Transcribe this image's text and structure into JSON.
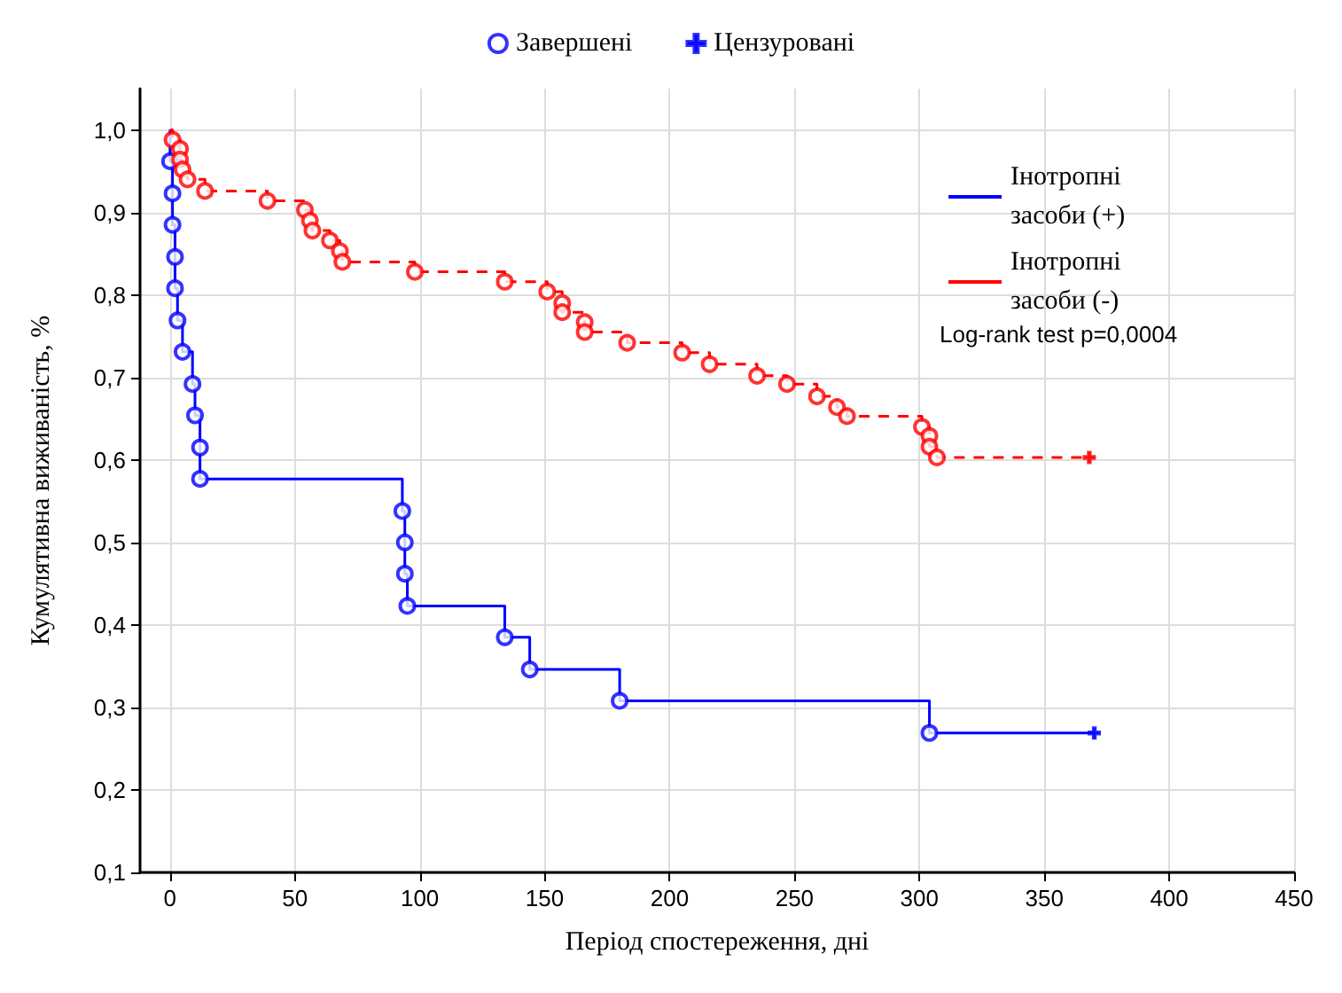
{
  "chart_data": {
    "type": "step",
    "xlabel": "Період спостереження, дні",
    "ylabel": "Кумулятивна виживаність, %",
    "xlim": [
      -12,
      450
    ],
    "xticks": [
      0,
      50,
      100,
      150,
      200,
      250,
      300,
      350,
      400,
      450
    ],
    "ylim": [
      0.1,
      1.05
    ],
    "yticks": [
      {
        "value": 0.1,
        "label": "0,1"
      },
      {
        "value": 0.2,
        "label": "0,2"
      },
      {
        "value": 0.3,
        "label": "0,3"
      },
      {
        "value": 0.4,
        "label": "0,4"
      },
      {
        "value": 0.5,
        "label": "0,5"
      },
      {
        "value": 0.6,
        "label": "0,6"
      },
      {
        "value": 0.7,
        "label": "0,7"
      },
      {
        "value": 0.8,
        "label": "0,8"
      },
      {
        "value": 0.9,
        "label": "0,9"
      },
      {
        "value": 1.0,
        "label": "1,0"
      }
    ],
    "grid": true,
    "legend": "top",
    "annotations": [
      "Log-rank test p=0,0004"
    ],
    "series": [
      {
        "name": "Інотропні засоби (+)",
        "type": "step",
        "color": "#0000ff",
        "line_style": "solid",
        "x": [
          0,
          0,
          1,
          1,
          2,
          2,
          3,
          5,
          9,
          10,
          12,
          12,
          93,
          94,
          94,
          95,
          134,
          144,
          180,
          304,
          370
        ],
        "values": [
          1.0,
          0.962,
          0.923,
          0.885,
          0.846,
          0.808,
          0.769,
          0.731,
          0.692,
          0.654,
          0.615,
          0.577,
          0.538,
          0.5,
          0.462,
          0.423,
          0.385,
          0.346,
          0.308,
          0.269,
          0.269
        ]
      },
      {
        "name": "Інотропні засоби (-)",
        "type": "step",
        "color": "#ff0000",
        "line_style": "dashed",
        "x": [
          0,
          1,
          4,
          4,
          5,
          7,
          14,
          39,
          54,
          56,
          57,
          64,
          68,
          69,
          98,
          134,
          151,
          157,
          157,
          166,
          166,
          183,
          205,
          216,
          235,
          247,
          259,
          267,
          271,
          301,
          304,
          304,
          307,
          368
        ],
        "values": [
          1.0,
          0.988,
          0.977,
          0.964,
          0.952,
          0.94,
          0.926,
          0.914,
          0.903,
          0.89,
          0.878,
          0.866,
          0.853,
          0.84,
          0.828,
          0.816,
          0.804,
          0.79,
          0.779,
          0.767,
          0.755,
          0.742,
          0.73,
          0.716,
          0.702,
          0.692,
          0.677,
          0.664,
          0.653,
          0.64,
          0.629,
          0.616,
          0.603,
          0.603
        ]
      },
      {
        "name": "Завершені",
        "type": "scatter",
        "marker": "circle",
        "x": [
          0,
          1,
          1,
          2,
          2,
          3,
          5,
          9,
          10,
          12,
          12,
          93,
          94,
          94,
          95,
          134,
          144,
          180,
          304,
          1,
          4,
          4,
          5,
          7,
          14,
          39,
          54,
          56,
          57,
          64,
          68,
          69,
          98,
          134,
          151,
          157,
          157,
          166,
          166,
          183,
          205,
          216,
          235,
          247,
          259,
          267,
          271,
          301,
          304,
          304,
          307
        ],
        "values": [
          0.962,
          0.923,
          0.885,
          0.846,
          0.808,
          0.769,
          0.731,
          0.692,
          0.654,
          0.615,
          0.577,
          0.538,
          0.5,
          0.462,
          0.423,
          0.385,
          0.346,
          0.308,
          0.269,
          0.988,
          0.977,
          0.964,
          0.952,
          0.94,
          0.926,
          0.914,
          0.903,
          0.89,
          0.878,
          0.866,
          0.853,
          0.84,
          0.828,
          0.816,
          0.804,
          0.79,
          0.779,
          0.767,
          0.755,
          0.742,
          0.73,
          0.716,
          0.702,
          0.692,
          0.677,
          0.664,
          0.653,
          0.64,
          0.629,
          0.616,
          0.603
        ],
        "colors": [
          "#0000ff",
          "#0000ff",
          "#0000ff",
          "#0000ff",
          "#0000ff",
          "#0000ff",
          "#0000ff",
          "#0000ff",
          "#0000ff",
          "#0000ff",
          "#0000ff",
          "#0000ff",
          "#0000ff",
          "#0000ff",
          "#0000ff",
          "#0000ff",
          "#0000ff",
          "#0000ff",
          "#0000ff",
          "#ff0000",
          "#ff0000",
          "#ff0000",
          "#ff0000",
          "#ff0000",
          "#ff0000",
          "#ff0000",
          "#ff0000",
          "#ff0000",
          "#ff0000",
          "#ff0000",
          "#ff0000",
          "#ff0000",
          "#ff0000",
          "#ff0000",
          "#ff0000",
          "#ff0000",
          "#ff0000",
          "#ff0000",
          "#ff0000",
          "#ff0000",
          "#ff0000",
          "#ff0000",
          "#ff0000",
          "#ff0000",
          "#ff0000",
          "#ff0000",
          "#ff0000",
          "#ff0000",
          "#ff0000",
          "#ff0000",
          "#ff0000"
        ],
        "color": "#0000ff"
      },
      {
        "name": "Цензуровані",
        "type": "scatter",
        "marker": "cross",
        "x": [
          370,
          368
        ],
        "values": [
          0.269,
          0.603
        ],
        "colors": [
          "#0000ff",
          "#ff0000"
        ],
        "color": "#0000ff"
      }
    ]
  }
}
